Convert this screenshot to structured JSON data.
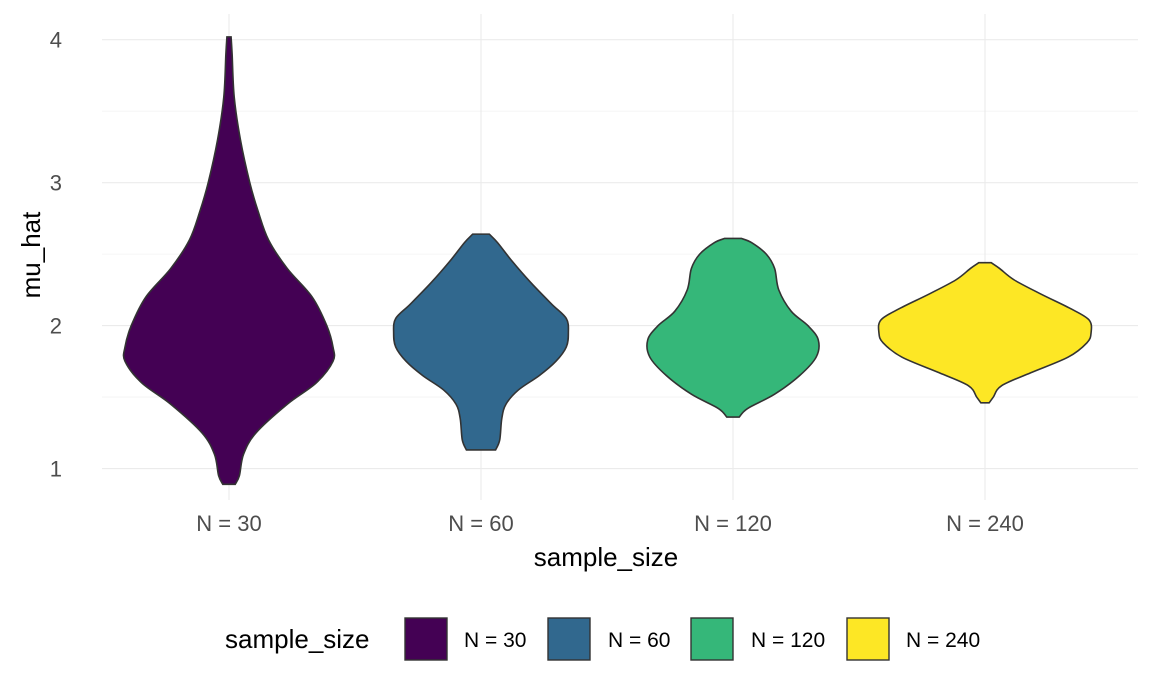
{
  "chart_data": {
    "type": "violin",
    "title": "",
    "xlabel": "sample_size",
    "ylabel": "mu_hat",
    "categories": [
      "N = 30",
      "N = 60",
      "N = 120",
      "N = 240"
    ],
    "ylim": [
      0.78,
      4.18
    ],
    "y_ticks": [
      1,
      2,
      3,
      4
    ],
    "y_tick_labels": [
      "1",
      "2",
      "3",
      "4"
    ],
    "grid": true,
    "legend": {
      "title": "sample_size",
      "position": "bottom",
      "entries": [
        "N = 30",
        "N = 60",
        "N = 120",
        "N = 240"
      ]
    },
    "series": [
      {
        "category": "N = 30",
        "color": "#440154",
        "density_profile": [
          [
            0.89,
            0.03
          ],
          [
            0.95,
            0.05
          ],
          [
            1.1,
            0.07
          ],
          [
            1.25,
            0.13
          ],
          [
            1.45,
            0.28
          ],
          [
            1.6,
            0.42
          ],
          [
            1.75,
            0.5
          ],
          [
            1.85,
            0.5
          ],
          [
            2.0,
            0.47
          ],
          [
            2.2,
            0.4
          ],
          [
            2.4,
            0.28
          ],
          [
            2.6,
            0.19
          ],
          [
            2.8,
            0.14
          ],
          [
            3.0,
            0.1
          ],
          [
            3.3,
            0.055
          ],
          [
            3.6,
            0.025
          ],
          [
            3.9,
            0.015
          ],
          [
            4.02,
            0.01
          ]
        ]
      },
      {
        "category": "N = 60",
        "color": "#31688e",
        "density_profile": [
          [
            1.13,
            0.07
          ],
          [
            1.2,
            0.09
          ],
          [
            1.35,
            0.1
          ],
          [
            1.45,
            0.12
          ],
          [
            1.55,
            0.18
          ],
          [
            1.65,
            0.28
          ],
          [
            1.75,
            0.36
          ],
          [
            1.85,
            0.41
          ],
          [
            1.95,
            0.42
          ],
          [
            2.05,
            0.41
          ],
          [
            2.15,
            0.34
          ],
          [
            2.3,
            0.24
          ],
          [
            2.45,
            0.15
          ],
          [
            2.58,
            0.08
          ],
          [
            2.64,
            0.04
          ]
        ]
      },
      {
        "category": "N = 120",
        "color": "#35b779",
        "density_profile": [
          [
            1.36,
            0.03
          ],
          [
            1.42,
            0.07
          ],
          [
            1.52,
            0.2
          ],
          [
            1.65,
            0.32
          ],
          [
            1.78,
            0.4
          ],
          [
            1.9,
            0.41
          ],
          [
            2.0,
            0.36
          ],
          [
            2.1,
            0.28
          ],
          [
            2.25,
            0.22
          ],
          [
            2.4,
            0.2
          ],
          [
            2.5,
            0.16
          ],
          [
            2.58,
            0.09
          ],
          [
            2.61,
            0.04
          ]
        ]
      },
      {
        "category": "N = 240",
        "color": "#fde725",
        "density_profile": [
          [
            1.46,
            0.02
          ],
          [
            1.5,
            0.04
          ],
          [
            1.58,
            0.08
          ],
          [
            1.67,
            0.22
          ],
          [
            1.78,
            0.4
          ],
          [
            1.88,
            0.49
          ],
          [
            1.95,
            0.51
          ],
          [
            2.04,
            0.5
          ],
          [
            2.12,
            0.41
          ],
          [
            2.22,
            0.27
          ],
          [
            2.32,
            0.14
          ],
          [
            2.4,
            0.07
          ],
          [
            2.44,
            0.03
          ]
        ]
      }
    ]
  }
}
